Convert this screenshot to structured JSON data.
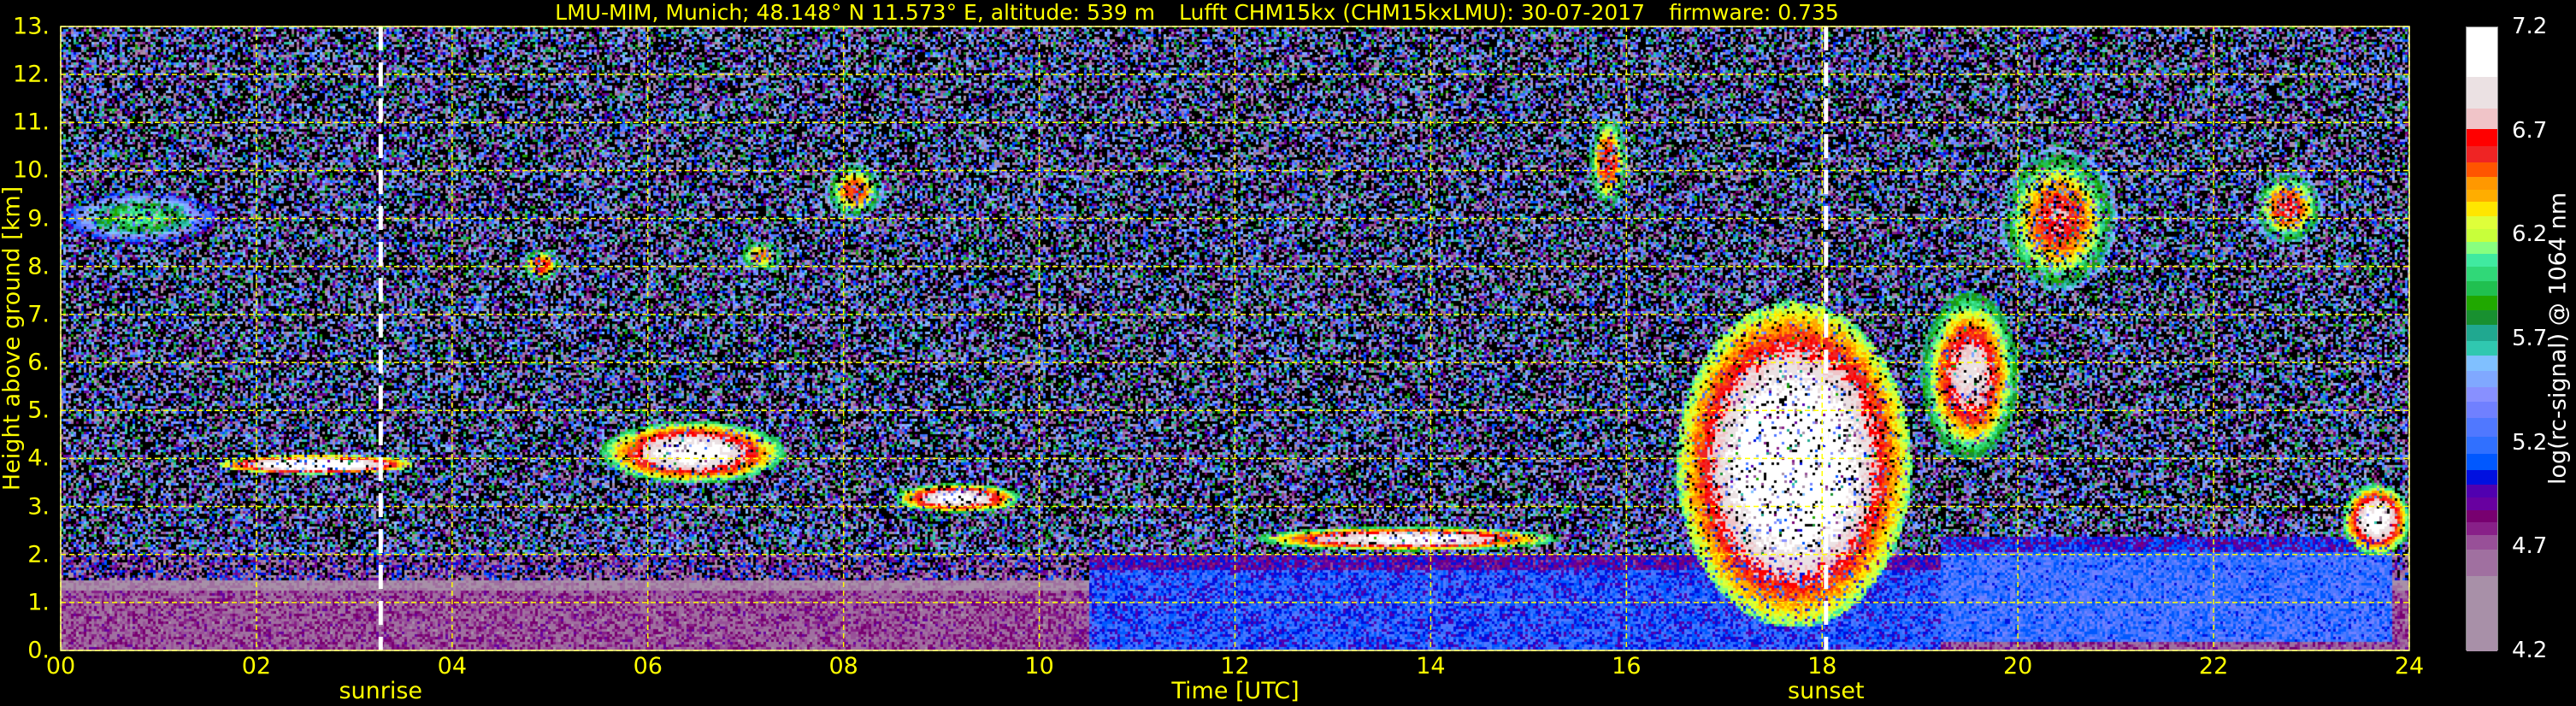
{
  "title": {
    "site": "LMU-MIM, Munich; 48.148° N 11.573° E, altitude: 539 m",
    "instrument": "Lufft CHM15kx (CHM15kxLMU): 30-07-2017",
    "firmware": "firmware: 0.735"
  },
  "chart_data": {
    "type": "heatmap",
    "xlabel": "Time [UTC]",
    "ylabel": "Height above ground [km]",
    "xlim": [
      0,
      24
    ],
    "ylim": [
      0,
      13
    ],
    "x_ticks": [
      0,
      2,
      4,
      6,
      8,
      10,
      12,
      14,
      16,
      18,
      20,
      22,
      24
    ],
    "x_tick_labels": [
      "00",
      "02",
      "04",
      "06",
      "08",
      "10",
      "12",
      "14",
      "16",
      "18",
      "20",
      "22",
      "24"
    ],
    "y_ticks": [
      0,
      1,
      2,
      3,
      4,
      5,
      6,
      7,
      8,
      9,
      10,
      11,
      12,
      13
    ],
    "y_tick_labels": [
      "0.",
      "1.",
      "2.",
      "3.",
      "4.",
      "5.",
      "6.",
      "7.",
      "8.",
      "9.",
      "10.",
      "11.",
      "12.",
      "13."
    ],
    "grid": true,
    "grid_color": "#ffff00",
    "markers": [
      {
        "label": "sunrise",
        "time": 3.27,
        "color": "#ffffff"
      },
      {
        "label": "sunset",
        "time": 18.04,
        "color": "#ffffff"
      }
    ],
    "colorbar": {
      "label": "log(rc-signal) @ 1064 nm",
      "range": [
        4.2,
        7.2
      ],
      "tick_values": [
        4.2,
        4.7,
        5.2,
        5.7,
        6.2,
        6.7,
        7.2
      ],
      "tick_labels": [
        "4.2",
        "4.7",
        "5.2",
        "5.7",
        "6.2",
        "6.7",
        "7.2"
      ],
      "bounds": [
        7.2,
        6.96,
        6.81,
        6.71,
        6.63,
        6.55,
        6.48,
        6.42,
        6.36,
        6.29,
        6.23,
        6.17,
        6.11,
        6.05,
        5.98,
        5.91,
        5.84,
        5.77,
        5.69,
        5.62,
        5.55,
        5.47,
        5.4,
        5.32,
        5.23,
        5.15,
        5.07,
        5.0,
        4.94,
        4.88,
        4.82,
        4.76,
        4.69,
        4.56,
        4.2
      ],
      "colors": [
        "#ffffff",
        "#ebe1e3",
        "#f0c4c8",
        "#ff0000",
        "#ef2424",
        "#ff5500",
        "#ff9800",
        "#ffad00",
        "#ffe600",
        "#dfff3a",
        "#c8ff3a",
        "#88ff7f",
        "#40eaa0",
        "#30d878",
        "#20c050",
        "#20a800",
        "#189030",
        "#20a890",
        "#30c8b0",
        "#80c0ff",
        "#80a8ff",
        "#8890ff",
        "#7080ff",
        "#5078ff",
        "#3070ff",
        "#0058ff",
        "#0010e0",
        "#5000b0",
        "#6800a0",
        "#780070",
        "#882088",
        "#985098",
        "#a070a0",
        "#a890a8"
      ]
    },
    "features": [
      {
        "kind": "boundary-layer",
        "t": [
          0,
          24
        ],
        "h": [
          0,
          1.5
        ],
        "signal": 4.8
      },
      {
        "kind": "boundary-layer",
        "t": [
          10.5,
          19.2
        ],
        "h": [
          0,
          2.0
        ],
        "signal": 5.2
      },
      {
        "kind": "boundary-layer",
        "t": [
          19.2,
          23.8
        ],
        "h": [
          0.2,
          2.4
        ],
        "signal": 5.3
      },
      {
        "kind": "cirrus",
        "t": [
          0,
          1.6
        ],
        "h": [
          8.5,
          9.6
        ],
        "signal": 6.0
      },
      {
        "kind": "cirrus",
        "t": [
          4.7,
          5.1
        ],
        "h": [
          7.7,
          8.4
        ],
        "signal": 6.6
      },
      {
        "kind": "cirrus",
        "t": [
          6.9,
          7.4
        ],
        "h": [
          7.9,
          8.6
        ],
        "signal": 6.4
      },
      {
        "kind": "cirrus",
        "t": [
          7.8,
          8.4
        ],
        "h": [
          9.0,
          10.2
        ],
        "signal": 6.5
      },
      {
        "kind": "cirrus",
        "t": [
          15.6,
          16.0
        ],
        "h": [
          9.2,
          11.2
        ],
        "signal": 6.6
      },
      {
        "kind": "cirrus",
        "t": [
          19.8,
          21.0
        ],
        "h": [
          7.5,
          10.5
        ],
        "signal": 6.6
      },
      {
        "kind": "cirrus",
        "t": [
          22.4,
          23.1
        ],
        "h": [
          8.5,
          10.0
        ],
        "signal": 6.6
      },
      {
        "kind": "cloud",
        "t": [
          1.6,
          3.6
        ],
        "h": [
          3.7,
          4.1
        ],
        "signal": 7.2
      },
      {
        "kind": "cloud",
        "t": [
          5.5,
          7.4
        ],
        "h": [
          3.5,
          4.8
        ],
        "signal": 7.0
      },
      {
        "kind": "cloud",
        "t": [
          8.5,
          9.8
        ],
        "h": [
          2.9,
          3.5
        ],
        "signal": 7.0
      },
      {
        "kind": "cloud",
        "t": [
          12.2,
          15.3
        ],
        "h": [
          2.1,
          2.6
        ],
        "signal": 7.0
      },
      {
        "kind": "convective",
        "t": [
          16.5,
          18.9
        ],
        "h": [
          0.5,
          7.3
        ],
        "signal": 7.2
      },
      {
        "kind": "cloud",
        "t": [
          19.0,
          20.0
        ],
        "h": [
          4.0,
          7.5
        ],
        "signal": 6.8
      },
      {
        "kind": "cloud",
        "t": [
          23.3,
          24.0
        ],
        "h": [
          2.0,
          3.5
        ],
        "signal": 7.0
      }
    ]
  }
}
